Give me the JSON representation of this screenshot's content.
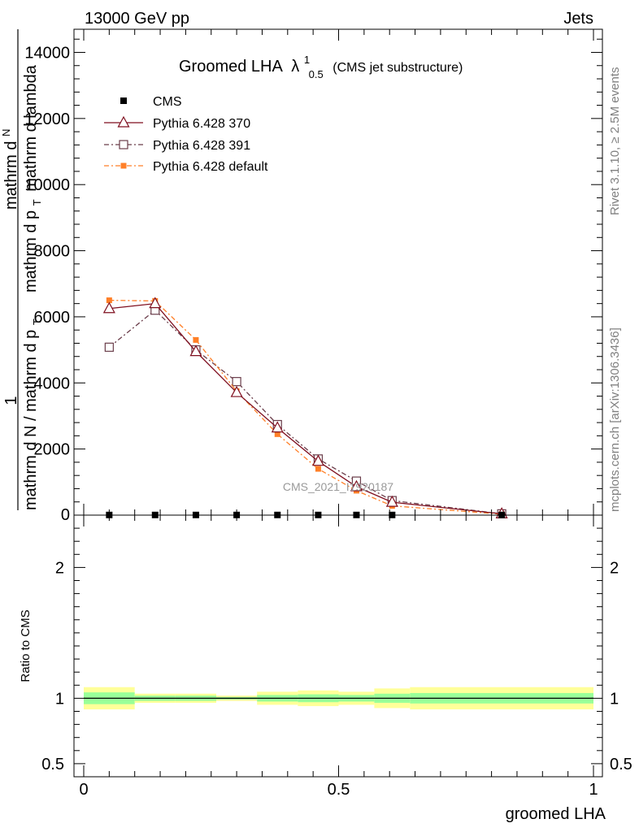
{
  "header": {
    "energy_label": "13000 GeV pp",
    "category_label": "Jets"
  },
  "side_notes": {
    "rivet": "Rivet 3.1.10, ≥ 2.5M events",
    "mcplots": "mcplots.cern.ch [arXiv:1306.3436]"
  },
  "watermark": "CMS_2021_I1920187",
  "chart_data": [
    {
      "type": "line",
      "title_main": "Groomed LHA",
      "title_lambda": "λ",
      "title_sup": "1",
      "title_sub": "0.5",
      "title_suffix": "(CMS jet substructure)",
      "ylabel_top": "1",
      "ylabel_mid": "mathrm d N / mathrm d p",
      "ylabel_mid_sub": "T",
      "ylabel_right": "mathrm d",
      "ylabel_right2": "N",
      "ylabel_bottom_line": "mathrm d p",
      "ylabel_bottom_sub": "T",
      "ylabel_bottom_end": "mathrm d lambda",
      "xlim": [
        0,
        1
      ],
      "ylim": [
        0,
        14700
      ],
      "y_ticks": [
        2000,
        4000,
        6000,
        8000,
        10000,
        12000,
        14000
      ],
      "y_tick_labels": [
        "2000",
        "4000",
        "6000",
        "8000",
        "10000",
        "12000",
        "14000"
      ],
      "bottom_tick_label": "0",
      "x": [
        0.05,
        0.14,
        0.22,
        0.3,
        0.38,
        0.46,
        0.535,
        0.605,
        0.82
      ],
      "series": [
        {
          "name": "CMS",
          "values": [
            5,
            5,
            5,
            5,
            5,
            5,
            5,
            5,
            5
          ],
          "color": "#000000",
          "marker": "filled-square",
          "dash": ""
        },
        {
          "name": "Pythia 6.428 370",
          "values": [
            6250,
            6400,
            4950,
            3710,
            2640,
            1630,
            860,
            390,
            40
          ],
          "color": "#7f0f1f",
          "marker": "open-triangle",
          "dash": ""
        },
        {
          "name": "Pythia 6.428 391",
          "values": [
            5080,
            6200,
            5000,
            4040,
            2740,
            1700,
            1030,
            440,
            40
          ],
          "color": "#6a3d4a",
          "marker": "open-square",
          "dash": "6 3 2 3"
        },
        {
          "name": "Pythia 6.428 default",
          "values": [
            6500,
            6480,
            5300,
            3750,
            2450,
            1400,
            740,
            280,
            30
          ],
          "color": "#ff7f27",
          "marker": "filled-square-small",
          "dash": "6 3 2 3"
        }
      ]
    },
    {
      "type": "area",
      "ylabel": "Ratio to CMS",
      "xlabel": "groomed LHA",
      "ylim": [
        0.4,
        2.4
      ],
      "y_ticks": [
        0.5,
        1,
        2
      ],
      "y_tick_labels": [
        "0.5",
        "1",
        "2"
      ],
      "x_ticks": [
        0,
        0.5,
        1
      ],
      "x_tick_labels": [
        "0",
        "0.5",
        "1"
      ],
      "bins": [
        {
          "lo": 0.0,
          "hi": 0.1,
          "stat": 0.045,
          "syst": 0.085
        },
        {
          "lo": 0.1,
          "hi": 0.18,
          "stat": 0.02,
          "syst": 0.035
        },
        {
          "lo": 0.18,
          "hi": 0.26,
          "stat": 0.02,
          "syst": 0.035
        },
        {
          "lo": 0.26,
          "hi": 0.34,
          "stat": 0.01,
          "syst": 0.02
        },
        {
          "lo": 0.34,
          "hi": 0.42,
          "stat": 0.025,
          "syst": 0.05
        },
        {
          "lo": 0.42,
          "hi": 0.5,
          "stat": 0.03,
          "syst": 0.06
        },
        {
          "lo": 0.5,
          "hi": 0.57,
          "stat": 0.025,
          "syst": 0.05
        },
        {
          "lo": 0.57,
          "hi": 0.64,
          "stat": 0.035,
          "syst": 0.075
        },
        {
          "lo": 0.64,
          "hi": 1.0,
          "stat": 0.04,
          "syst": 0.085
        }
      ],
      "reference_value": 1.0
    }
  ]
}
